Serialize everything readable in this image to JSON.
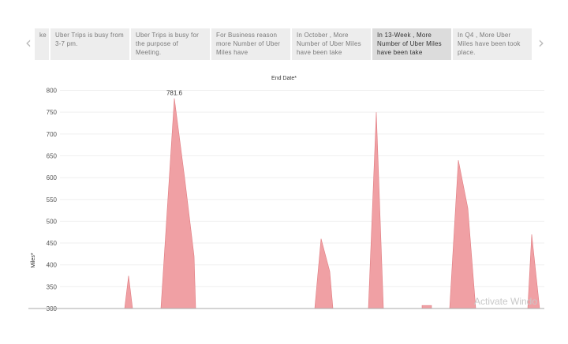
{
  "story": {
    "prev_icon": "chevron-left-icon",
    "next_icon": "chevron-right-icon",
    "points": [
      {
        "text": "ke",
        "cut": true,
        "active": false
      },
      {
        "text": "Uber Trips is busy from 3-7 pm.",
        "active": false
      },
      {
        "text": "Uber Trips is busy for the purpose of Meeting.",
        "active": false
      },
      {
        "text": "For Business reason more Number of Uber Miles have",
        "active": false
      },
      {
        "text": "In October , More Number of Uber Miles have been take",
        "active": false
      },
      {
        "text": "In 13-Week , More Number of Uber Miles have been take",
        "active": true
      },
      {
        "text": "In Q4 , More Uber Miles have been took place.",
        "active": false
      }
    ]
  },
  "watermark": "Activate Windo",
  "chart_data": {
    "type": "area",
    "title": "End Date*",
    "ylabel": "Miles*",
    "ylim": [
      300,
      810
    ],
    "yticks": [
      300,
      350,
      400,
      450,
      500,
      550,
      600,
      650,
      700,
      750,
      800
    ],
    "grid": true,
    "annotations": [
      {
        "label": "781.6",
        "value": 781.6
      }
    ],
    "color": "#f0a0a4",
    "stroke": "#e07b80",
    "peaks": [
      {
        "values": [
          300,
          375,
          300
        ]
      },
      {
        "values": [
          300,
          781.6,
          600,
          420,
          300
        ]
      },
      {
        "values": [
          300,
          460,
          385,
          300
        ]
      },
      {
        "values": [
          300,
          750,
          300
        ]
      },
      {
        "values": [
          307,
          307
        ]
      },
      {
        "values": [
          300,
          640,
          530,
          300
        ]
      },
      {
        "values": [
          300,
          470,
          300
        ]
      }
    ]
  }
}
